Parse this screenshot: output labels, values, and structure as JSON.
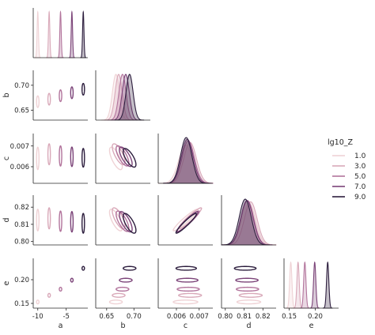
{
  "chart_data": {
    "type": "pairplot",
    "title": "",
    "variables": [
      "a",
      "b",
      "c",
      "d",
      "e"
    ],
    "legend": {
      "title": "lg10_Z",
      "placement": "right",
      "entries": [
        {
          "label": "1.0",
          "color": "#efd2d5"
        },
        {
          "label": "3.0",
          "color": "#d9a9b9"
        },
        {
          "label": "5.0",
          "color": "#b2749c"
        },
        {
          "label": "7.0",
          "color": "#7b4378"
        },
        {
          "label": "9.0",
          "color": "#2d1e3e"
        }
      ]
    },
    "axes": {
      "a": {
        "range": [
          -10.8,
          -1.2
        ],
        "ticks": [
          -10,
          -5
        ],
        "tick_labels": [
          "-10",
          "-5"
        ]
      },
      "b": {
        "range": [
          0.63,
          0.73
        ],
        "ticks": [
          0.65,
          0.7
        ],
        "tick_labels": [
          "0.65",
          "0.70"
        ]
      },
      "c": {
        "range": [
          0.0052,
          0.0076
        ],
        "ticks": [
          0.006,
          0.007
        ],
        "tick_labels": [
          "0.006",
          "0.007"
        ]
      },
      "d": {
        "range": [
          0.798,
          0.827
        ],
        "ticks": [
          0.8,
          0.81,
          0.82
        ],
        "tick_labels": [
          "0.80",
          "0.81",
          "0.82"
        ]
      },
      "e": {
        "range": [
          0.14,
          0.245
        ],
        "ticks": [
          0.15,
          0.2
        ],
        "tick_labels": [
          "0.15",
          "0.20"
        ]
      }
    },
    "series": [
      {
        "name": "1.0",
        "means": {
          "a": -10,
          "b": 0.667,
          "c": 0.0064,
          "d": 0.8125,
          "e": 0.153
        },
        "sd": {
          "a": 0.12,
          "b": 0.0065,
          "c": 0.0003,
          "d": 0.0035,
          "e": 0.0022
        }
      },
      {
        "name": "3.0",
        "means": {
          "a": -8,
          "b": 0.672,
          "c": 0.0066,
          "d": 0.8135,
          "e": 0.167
        },
        "sd": {
          "a": 0.12,
          "b": 0.0065,
          "c": 0.00028,
          "d": 0.0034,
          "e": 0.0022
        }
      },
      {
        "name": "5.0",
        "means": {
          "a": -6,
          "b": 0.679,
          "c": 0.00652,
          "d": 0.8118,
          "e": 0.18
        },
        "sd": {
          "a": 0.12,
          "b": 0.0065,
          "c": 0.00027,
          "d": 0.0033,
          "e": 0.0022
        }
      },
      {
        "name": "7.0",
        "means": {
          "a": -4,
          "b": 0.685,
          "c": 0.00648,
          "d": 0.8115,
          "e": 0.199
        },
        "sd": {
          "a": 0.12,
          "b": 0.0065,
          "c": 0.00026,
          "d": 0.0033,
          "e": 0.0022
        }
      },
      {
        "name": "9.0",
        "means": {
          "a": -2,
          "b": 0.692,
          "c": 0.00643,
          "d": 0.8106,
          "e": 0.224
        },
        "sd": {
          "a": 0.12,
          "b": 0.0065,
          "c": 0.00025,
          "d": 0.0032,
          "e": 0.0022
        }
      }
    ],
    "correlations": {
      "b|c": -0.72,
      "b|d": -0.72,
      "c|d": 0.95
    }
  }
}
